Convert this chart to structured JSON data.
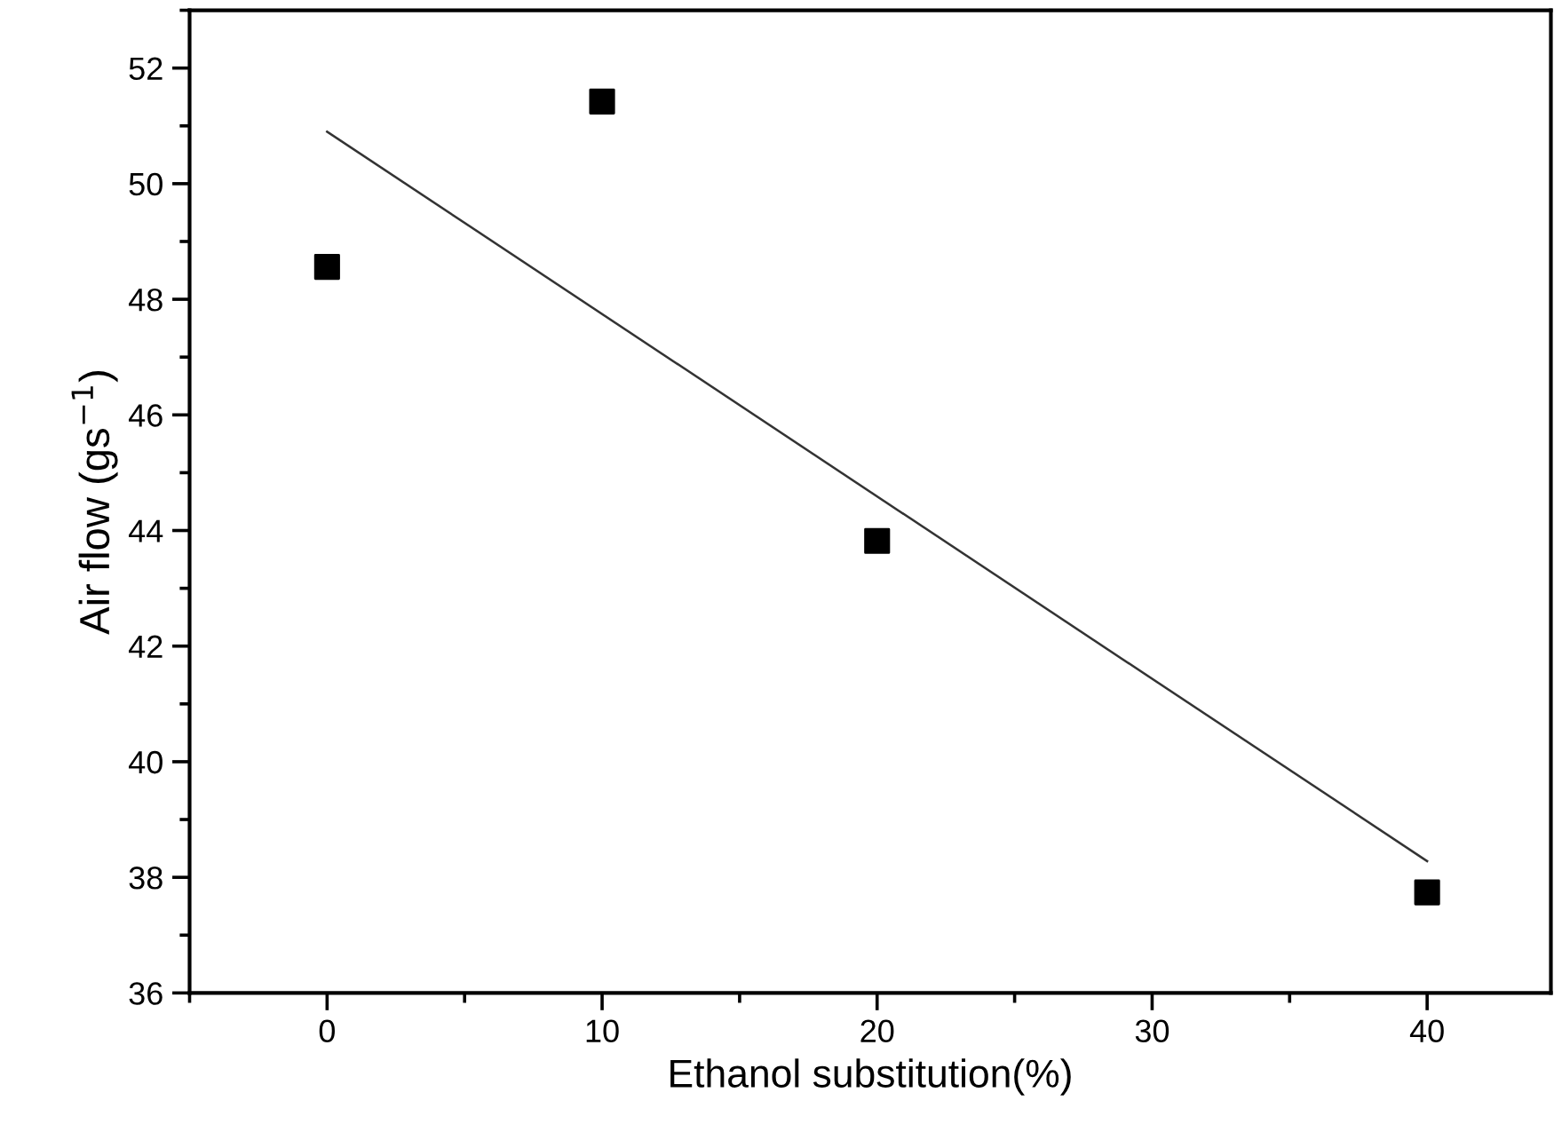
{
  "chart_data": {
    "type": "scatter",
    "xlabel": "Ethanol substitution(%)",
    "ylabel": "Air flow (gs$^{−1}$)",
    "series": [
      {
        "color": "#000000",
        "marker": "square",
        "x": [
          0,
          10,
          20,
          40
        ],
        "values": [
          48.56,
          51.42,
          43.82,
          37.74
        ]
      },
      {
        "type": "line",
        "color": "#333333",
        "marker": "none",
        "line_style": "solid",
        "x": [
          0,
          40
        ],
        "values": [
          50.9,
          38.28
        ]
      }
    ],
    "xlim": [
      -5,
      44.5
    ],
    "xticks": [
      0,
      10,
      20,
      30,
      40
    ],
    "ylim": [
      36,
      53
    ],
    "yticks": [
      36,
      38,
      40,
      42,
      44,
      46,
      48,
      50,
      52
    ],
    "grid": false,
    "legend": false
  }
}
